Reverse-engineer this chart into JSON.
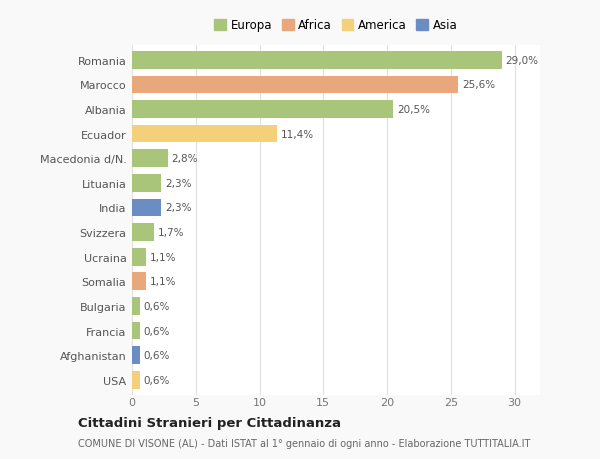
{
  "countries": [
    "Romania",
    "Marocco",
    "Albania",
    "Ecuador",
    "Macedonia d/N.",
    "Lituania",
    "India",
    "Svizzera",
    "Ucraina",
    "Somalia",
    "Bulgaria",
    "Francia",
    "Afghanistan",
    "USA"
  ],
  "values": [
    29.0,
    25.6,
    20.5,
    11.4,
    2.8,
    2.3,
    2.3,
    1.7,
    1.1,
    1.1,
    0.6,
    0.6,
    0.6,
    0.6
  ],
  "labels": [
    "29,0%",
    "25,6%",
    "20,5%",
    "11,4%",
    "2,8%",
    "2,3%",
    "2,3%",
    "1,7%",
    "1,1%",
    "1,1%",
    "0,6%",
    "0,6%",
    "0,6%",
    "0,6%"
  ],
  "colors": [
    "#a8c57a",
    "#e8a87c",
    "#a8c57a",
    "#f5d07a",
    "#a8c57a",
    "#a8c57a",
    "#6b8dc4",
    "#a8c57a",
    "#a8c57a",
    "#e8a87c",
    "#a8c57a",
    "#a8c57a",
    "#6b8dc4",
    "#f5d07a"
  ],
  "continent_labels": [
    "Europa",
    "Africa",
    "America",
    "Asia"
  ],
  "continent_colors": [
    "#a8c57a",
    "#e8a87c",
    "#f5d07a",
    "#6b8dc4"
  ],
  "title": "Cittadini Stranieri per Cittadinanza",
  "subtitle": "COMUNE DI VISONE (AL) - Dati ISTAT al 1° gennaio di ogni anno - Elaborazione TUTTITALIA.IT",
  "xlim": [
    0,
    32
  ],
  "background_color": "#f9f9f9",
  "plot_bg_color": "#ffffff",
  "grid_color": "#e0e0e0"
}
